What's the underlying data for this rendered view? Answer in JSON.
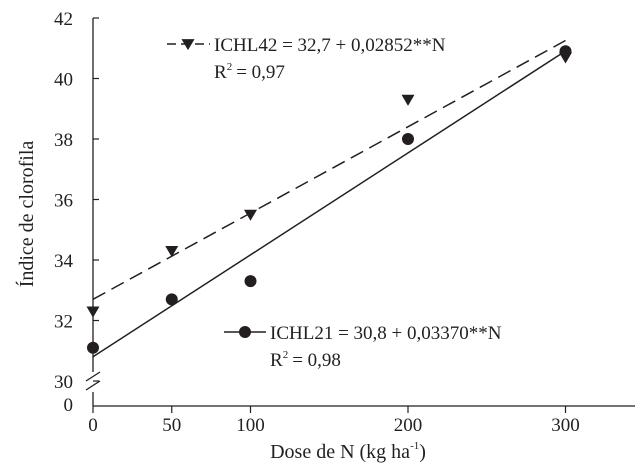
{
  "chart_data": {
    "type": "scatter",
    "x": [
      0,
      50,
      100,
      200,
      300
    ],
    "series": [
      {
        "name": "ICHL42",
        "marker": "triangle-down",
        "line_style": "dashed",
        "values": [
          32.3,
          34.3,
          35.5,
          39.3,
          40.7
        ],
        "equation": "ICHL42 = 32,7 + 0,02852**N",
        "fit": {
          "intercept": 32.7,
          "slope": 0.02852
        },
        "r2_prefix": "R",
        "r2_sup": "2",
        "r2_value": "= 0,97"
      },
      {
        "name": "ICHL21",
        "marker": "circle",
        "line_style": "solid",
        "values": [
          31.1,
          32.7,
          33.3,
          38.0,
          40.9
        ],
        "equation": "ICHL21 = 30,8 + 0,03370**N",
        "fit": {
          "intercept": 30.8,
          "slope": 0.0337
        },
        "r2_prefix": "R",
        "r2_sup": "2",
        "r2_value": "= 0,98"
      }
    ],
    "xlabel": "Dose  de N (kg ha",
    "xlabel_sup": "-1",
    "xlabel_close": ")",
    "ylabel": "Índice de clorofila",
    "xticks": [
      "0",
      "50",
      "100",
      "200",
      "300"
    ],
    "yticks": [
      "30",
      "32",
      "34",
      "36",
      "38",
      "40",
      "42"
    ],
    "y_break_label": "0",
    "xlim": [
      0,
      340
    ],
    "ylim": [
      30,
      42
    ],
    "axis_break": true,
    "grid": false,
    "colors": {
      "ink": "#231f20",
      "background": "#ffffff"
    }
  }
}
